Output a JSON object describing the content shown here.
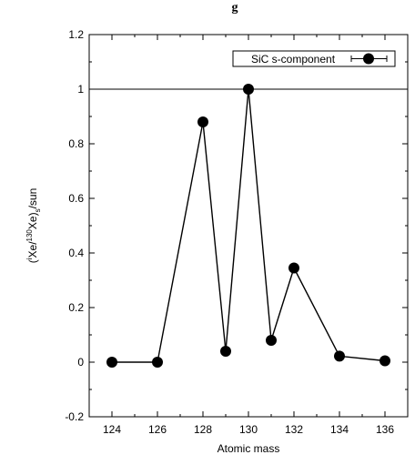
{
  "chart_data": {
    "type": "line",
    "title_fragment": "g",
    "xlabel": "Atomic mass",
    "ylabel_parts": {
      "pre": "(",
      "x": "i",
      "xe1": "Xe/",
      "sup": "130",
      "xe2": "Xe)",
      "sub": "s",
      "post": "/sun"
    },
    "xlim": [
      123,
      137
    ],
    "ylim": [
      -0.2,
      1.2
    ],
    "x_ticks": [
      124,
      126,
      128,
      130,
      132,
      134,
      136
    ],
    "y_ticks": [
      -0.2,
      0,
      0.2,
      0.4,
      0.6,
      0.8,
      1,
      1.2
    ],
    "x_tick_labels": [
      "124",
      "126",
      "128",
      "130",
      "132",
      "134",
      "136"
    ],
    "y_tick_labels": [
      "-0.2",
      "0",
      "0.2",
      "0.4",
      "0.6",
      "0.8",
      "1",
      "1.2"
    ],
    "reference_line": 1,
    "legend": {
      "label": "SiC s-component",
      "placement": "top-right"
    },
    "series": [
      {
        "name": "SiC s-component",
        "x": [
          124,
          126,
          128,
          129,
          130,
          131,
          132,
          134,
          136
        ],
        "y": [
          0.0,
          0.0,
          0.88,
          0.04,
          1.0,
          0.08,
          0.345,
          0.022,
          0.005
        ]
      }
    ]
  }
}
